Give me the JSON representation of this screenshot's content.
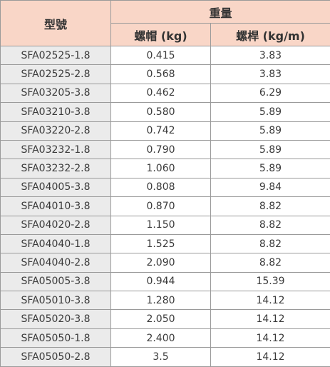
{
  "header": {
    "model": "型號",
    "weight": "重量",
    "nut": "螺帽 (kg)",
    "screw": "螺桿 (kg/m)"
  },
  "table": {
    "rows": [
      [
        "SFA02525-1.8",
        "0.415",
        "3.83"
      ],
      [
        "SFA02525-2.8",
        "0.568",
        "3.83"
      ],
      [
        "SFA03205-3.8",
        "0.462",
        "6.29"
      ],
      [
        "SFA03210-3.8",
        "0.580",
        "5.89"
      ],
      [
        "SFA03220-2.8",
        "0.742",
        "5.89"
      ],
      [
        "SFA03232-1.8",
        "0.790",
        "5.89"
      ],
      [
        "SFA03232-2.8",
        "1.060",
        "5.89"
      ],
      [
        "SFA04005-3.8",
        "0.808",
        "9.84"
      ],
      [
        "SFA04010-3.8",
        "0.870",
        "8.82"
      ],
      [
        "SFA04020-2.8",
        "1.150",
        "8.82"
      ],
      [
        "SFA04040-1.8",
        "1.525",
        "8.82"
      ],
      [
        "SFA04040-2.8",
        "2.090",
        "8.82"
      ],
      [
        "SFA05005-3.8",
        "0.944",
        "15.39"
      ],
      [
        "SFA05010-3.8",
        "1.280",
        "14.12"
      ],
      [
        "SFA05020-3.8",
        "2.050",
        "14.12"
      ],
      [
        "SFA05050-1.8",
        "2.400",
        "14.12"
      ],
      [
        "SFA05050-2.8",
        "3.5",
        "14.12"
      ]
    ]
  }
}
